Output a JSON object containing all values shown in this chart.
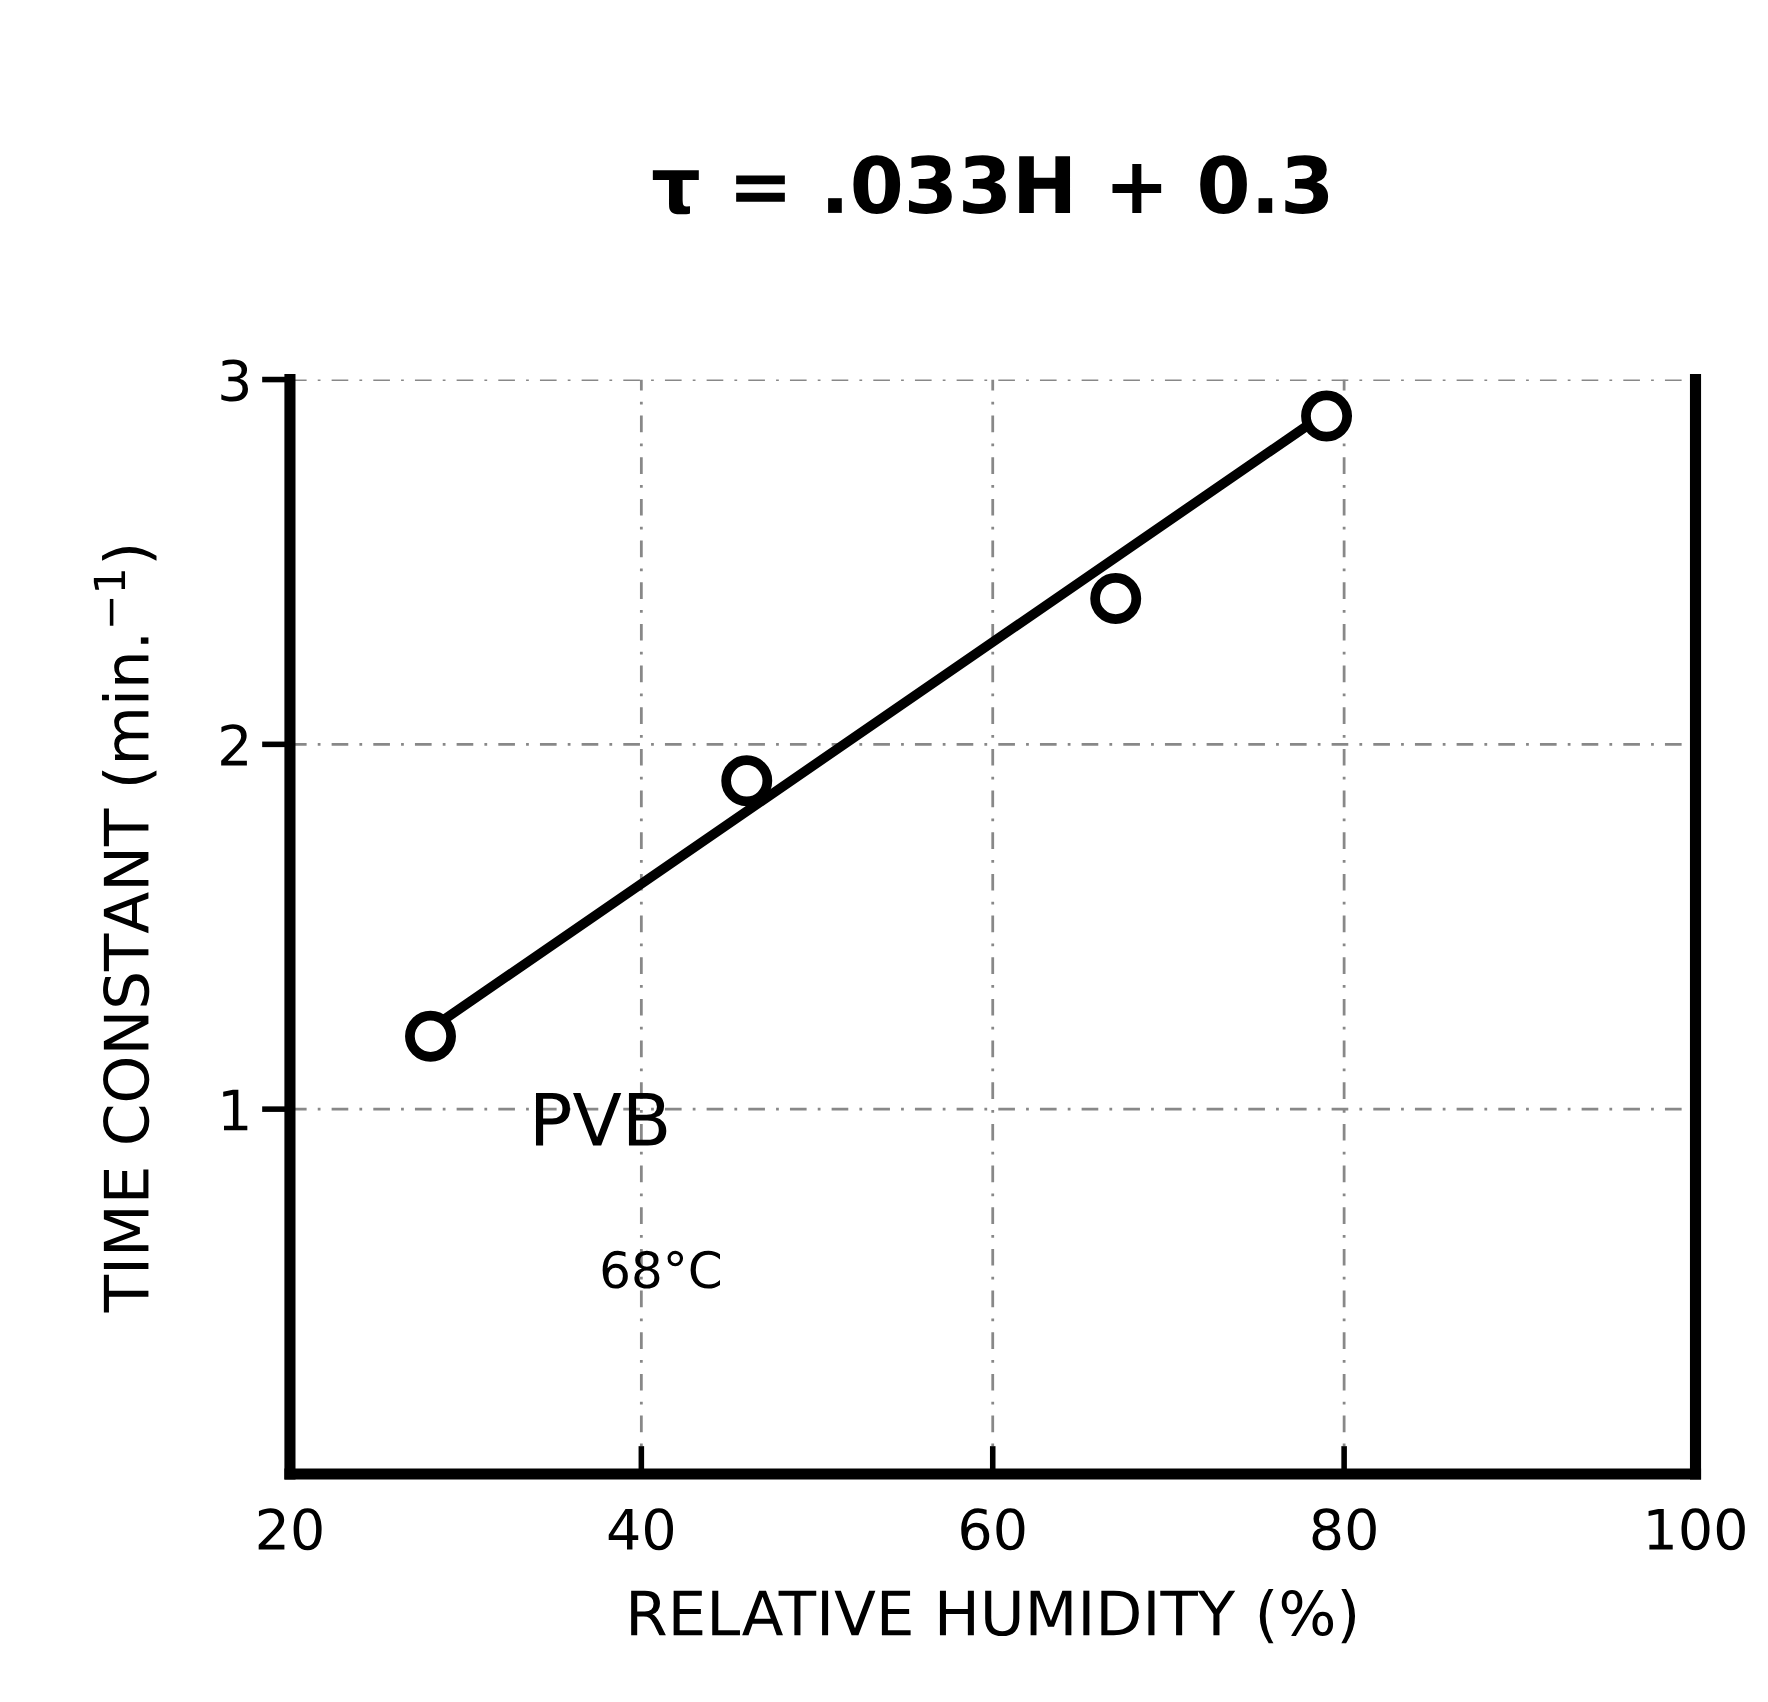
{
  "chart_data": {
    "type": "scatter",
    "title": "τ = .033H + 0.3",
    "xlabel": "RELATIVE HUMIDITY (%)",
    "ylabel": "TIME CONSTANT (min.$^{−1}$)",
    "annotations": [
      "PVB",
      "68°C"
    ],
    "series": [
      {
        "color": "#000000",
        "marker": "circle",
        "x": [
          28,
          46,
          67,
          79
        ],
        "values": [
          1.2,
          1.9,
          2.4,
          2.9
        ]
      },
      {
        "type": "line",
        "color": "#000000",
        "x": [
          28,
          79
        ],
        "values": [
          1.22,
          2.91
        ]
      }
    ],
    "xlim": [
      20,
      100
    ],
    "ylim": [
      0,
      3
    ],
    "xticks": [
      20,
      40,
      60,
      80,
      100
    ],
    "yticks": [
      1,
      2,
      3
    ],
    "grid": true
  }
}
